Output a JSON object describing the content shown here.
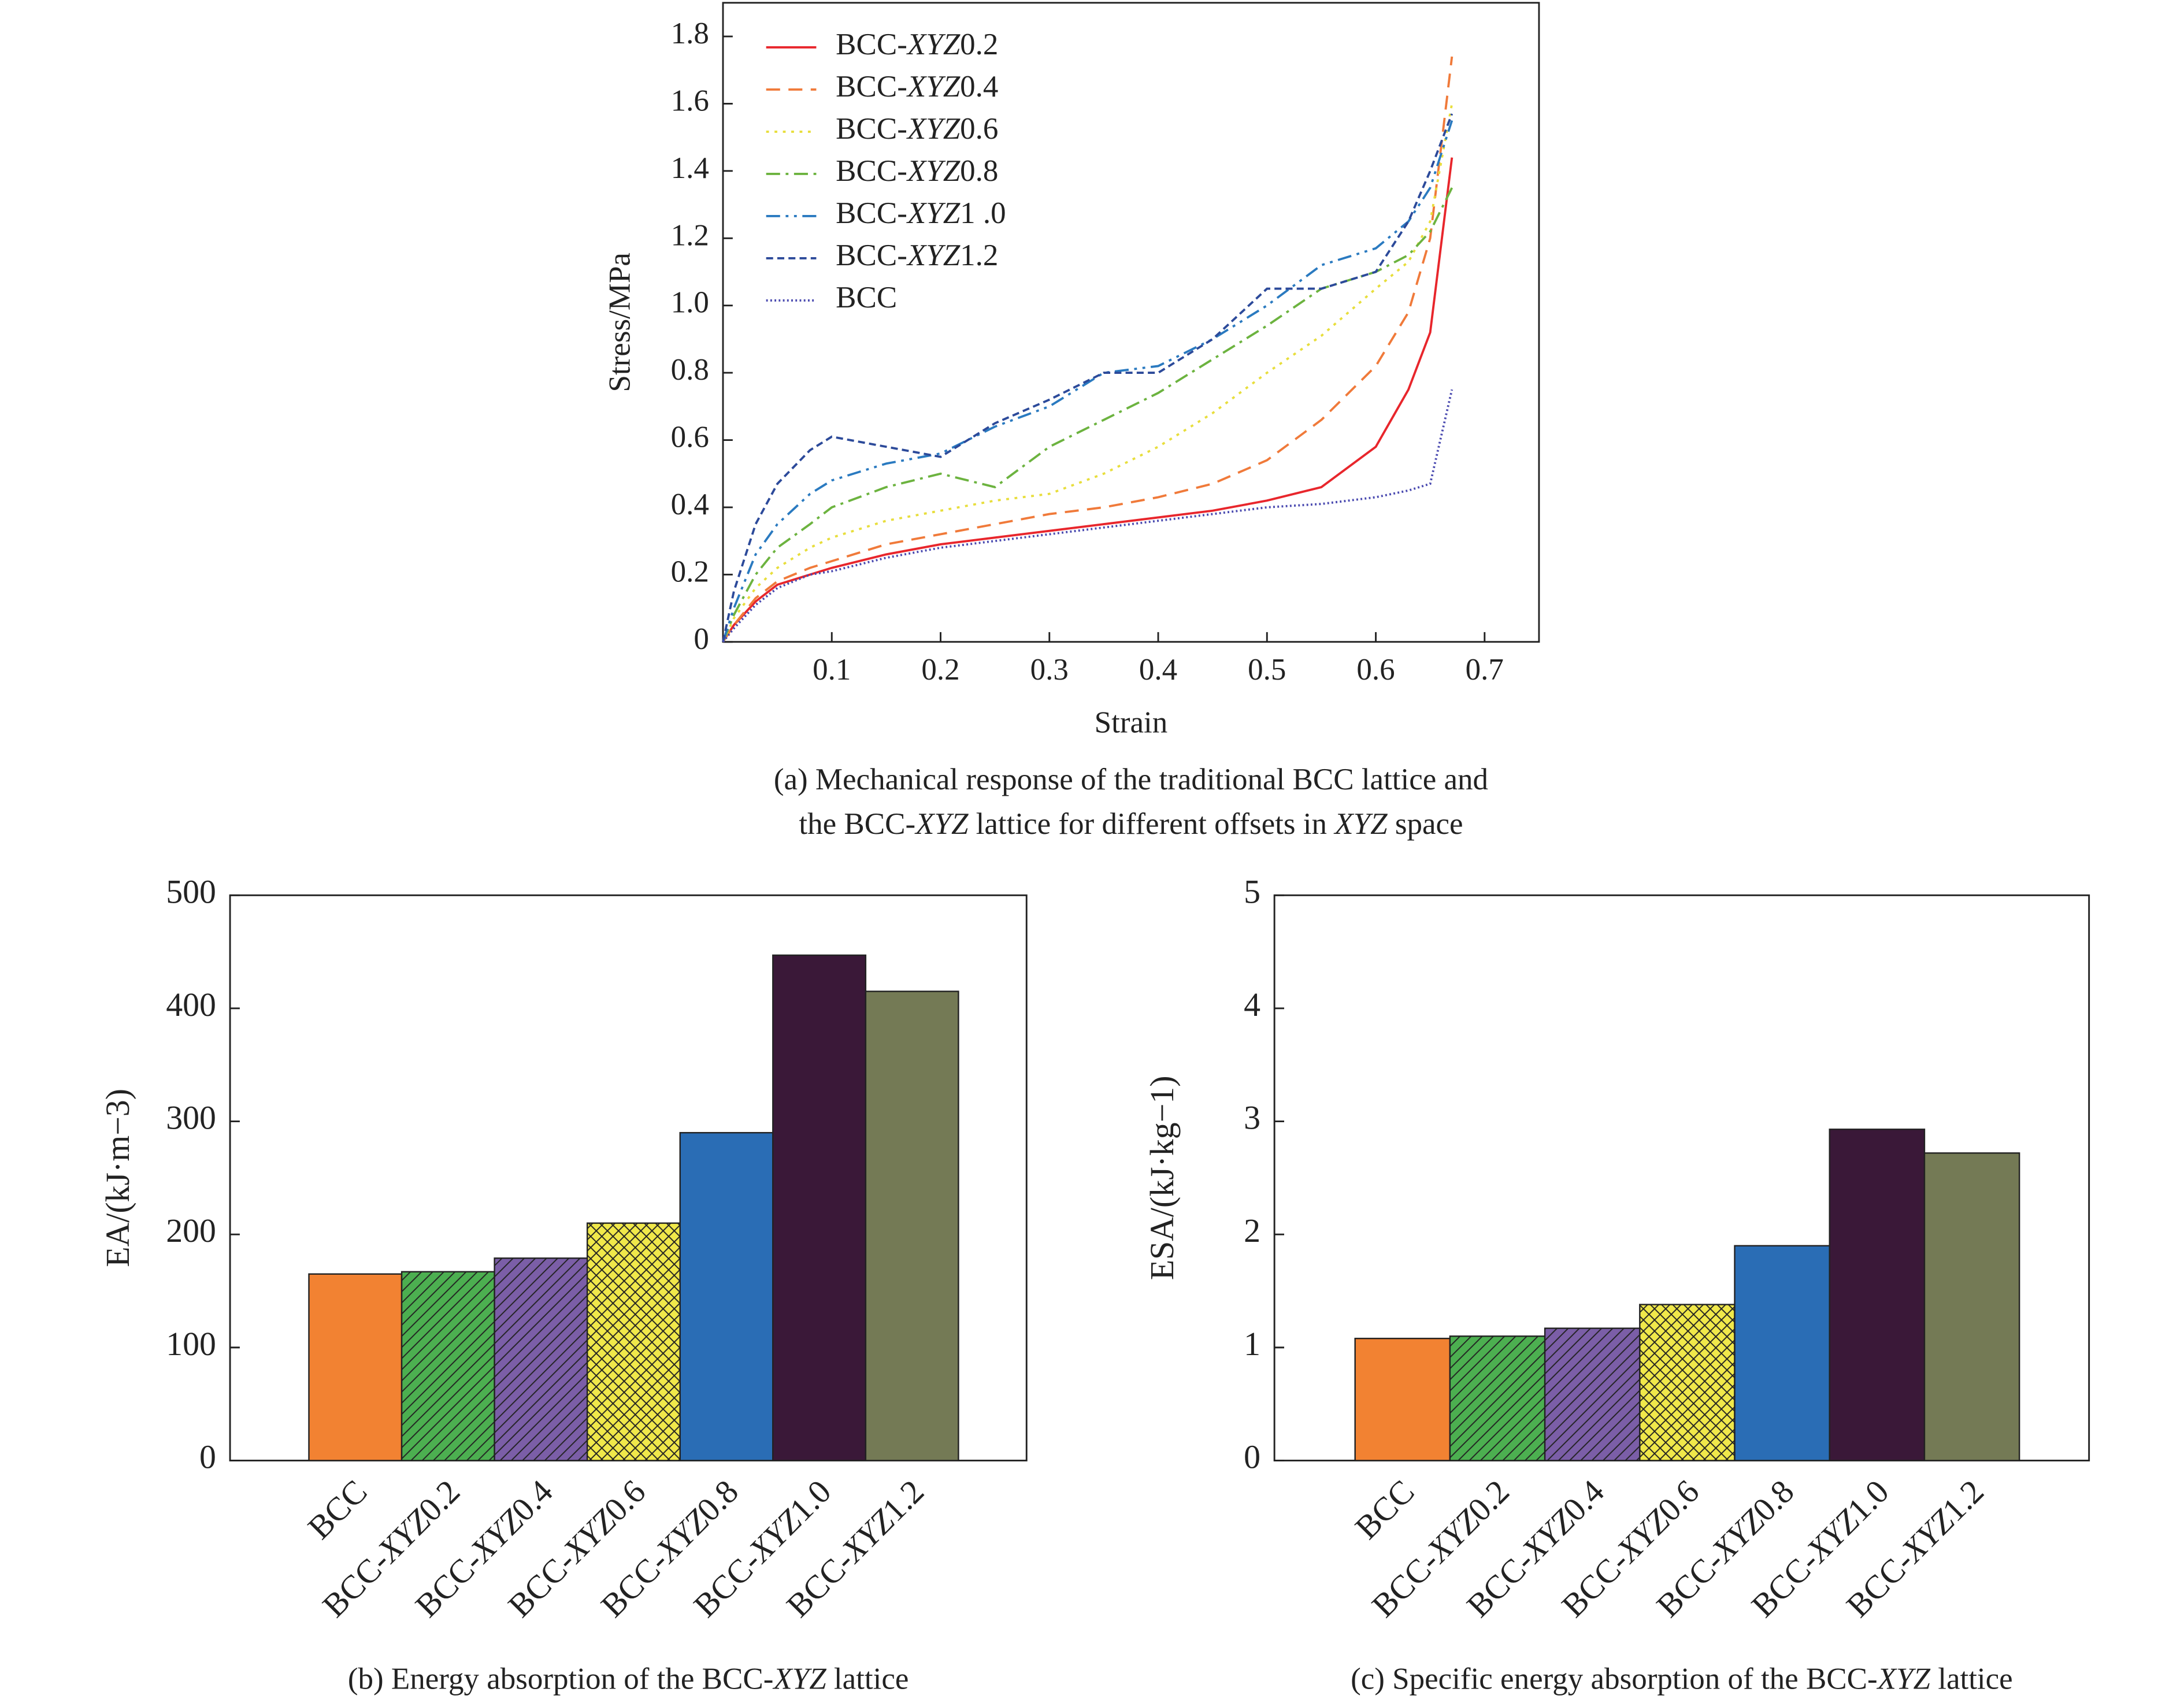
{
  "chart_data": [
    {
      "type": "line",
      "x_label": "Strain",
      "y_label": "Stress/MPa",
      "caption": [
        "(a) Mechanical response of the traditional BCC lattice and",
        "the BCC-XYZ lattice for different offsets in XYZ space"
      ],
      "x": [
        0,
        0.01,
        0.03,
        0.05,
        0.08,
        0.1,
        0.15,
        0.2,
        0.25,
        0.3,
        0.35,
        0.4,
        0.45,
        0.5,
        0.55,
        0.6,
        0.63,
        0.65,
        0.67
      ],
      "xlim": [
        0,
        0.75
      ],
      "xticks": [
        0.1,
        0.2,
        0.3,
        0.4,
        0.5,
        0.6,
        0.7
      ],
      "ylim": [
        0,
        1.9
      ],
      "yticks": [
        0,
        0.2,
        0.4,
        0.6,
        0.8,
        {
          "value": 1,
          "label": "1.0"
        },
        1.2,
        1.4,
        1.6,
        1.8
      ],
      "legend": "upper left",
      "series": [
        {
          "name": "BCC-XYZ0.2",
          "color": "#e8262c",
          "dash": "solid",
          "values": [
            0,
            0.05,
            0.12,
            0.17,
            0.2,
            0.22,
            0.26,
            0.29,
            0.31,
            0.33,
            0.35,
            0.37,
            0.39,
            0.42,
            0.46,
            0.58,
            0.75,
            0.92,
            1.44
          ]
        },
        {
          "name": "BCC-XYZ0.4",
          "color": "#f07a3a",
          "dash": "dashed",
          "values": [
            0,
            0.05,
            0.13,
            0.18,
            0.22,
            0.24,
            0.29,
            0.32,
            0.35,
            0.38,
            0.4,
            0.43,
            0.47,
            0.54,
            0.66,
            0.82,
            0.98,
            1.2,
            1.74
          ]
        },
        {
          "name": "BCC-XYZ0.6",
          "color": "#e8de3c",
          "dash": "dotted",
          "values": [
            0,
            0.07,
            0.16,
            0.22,
            0.28,
            0.31,
            0.36,
            0.39,
            0.42,
            0.44,
            0.5,
            0.58,
            0.68,
            0.8,
            0.91,
            1.05,
            1.13,
            1.25,
            1.6
          ]
        },
        {
          "name": "BCC-XYZ0.8",
          "color": "#6cb33f",
          "dash": "dashdot",
          "values": [
            0,
            0.08,
            0.2,
            0.28,
            0.35,
            0.4,
            0.46,
            0.5,
            0.46,
            0.58,
            0.66,
            0.74,
            0.84,
            0.94,
            1.05,
            1.1,
            1.15,
            1.22,
            1.35
          ]
        },
        {
          "name": "BCC-XYZ1 .0",
          "color": "#2a7ac0",
          "dash": "dashdotdot",
          "values": [
            0,
            0.1,
            0.26,
            0.35,
            0.44,
            0.48,
            0.53,
            0.56,
            0.64,
            0.7,
            0.8,
            0.82,
            0.9,
            1.0,
            1.12,
            1.17,
            1.25,
            1.35,
            1.55
          ]
        },
        {
          "name": "BCC-XYZ1.2",
          "color": "#2c4a9a",
          "dash": "shortdash",
          "values": [
            0,
            0.15,
            0.35,
            0.47,
            0.57,
            0.61,
            0.58,
            0.55,
            0.65,
            0.72,
            0.8,
            0.8,
            0.9,
            1.05,
            1.05,
            1.1,
            1.25,
            1.4,
            1.57
          ]
        },
        {
          "name": "BCC",
          "color": "#4a4ab0",
          "dash": "densedot",
          "values": [
            0,
            0.04,
            0.11,
            0.16,
            0.2,
            0.21,
            0.25,
            0.28,
            0.3,
            0.32,
            0.34,
            0.36,
            0.38,
            0.4,
            0.41,
            0.43,
            0.45,
            0.47,
            0.75
          ]
        }
      ]
    },
    {
      "type": "bar",
      "y_label": "EA/(kJ·m−3)",
      "caption": [
        "(b) Energy absorption of the BCC-XYZ lattice"
      ],
      "categories": [
        "BCC",
        "BCC-XYZ0.2",
        "BCC-XYZ0.4",
        "BCC-XYZ0.6",
        "BCC-XYZ0.8",
        "BCC-XYZ1.0",
        "BCC-XYZ1.2"
      ],
      "values": [
        165,
        167,
        179,
        210,
        290,
        447,
        415
      ],
      "colors": [
        "#f28232",
        "#4caf50",
        "#7b5ea7",
        "#f0e84a",
        "#2a6db5",
        "#3a1838",
        "#747a55"
      ],
      "hatches": [
        "none",
        "diag",
        "diag",
        "cross",
        "none",
        "none",
        "none"
      ],
      "ylim": [
        0,
        500
      ],
      "yticks": [
        0,
        100,
        200,
        300,
        400,
        500
      ]
    },
    {
      "type": "bar",
      "y_label": "ESA/(kJ·kg−1)",
      "caption": [
        "(c) Specific energy absorption of the BCC-XYZ lattice"
      ],
      "categories": [
        "BCC",
        "BCC-XYZ0.2",
        "BCC-XYZ0.4",
        "BCC-XYZ0.6",
        "BCC-XYZ0.8",
        "BCC-XYZ1.0",
        "BCC-XYZ1.2"
      ],
      "values": [
        1.08,
        1.1,
        1.17,
        1.38,
        1.9,
        2.93,
        2.72
      ],
      "colors": [
        "#f28232",
        "#4caf50",
        "#7b5ea7",
        "#f0e84a",
        "#2a6db5",
        "#3a1838",
        "#747a55"
      ],
      "hatches": [
        "none",
        "diag",
        "diag",
        "cross",
        "none",
        "none",
        "none"
      ],
      "ylim": [
        0,
        5
      ],
      "yticks": [
        0,
        1,
        2,
        3,
        4,
        5
      ]
    }
  ]
}
